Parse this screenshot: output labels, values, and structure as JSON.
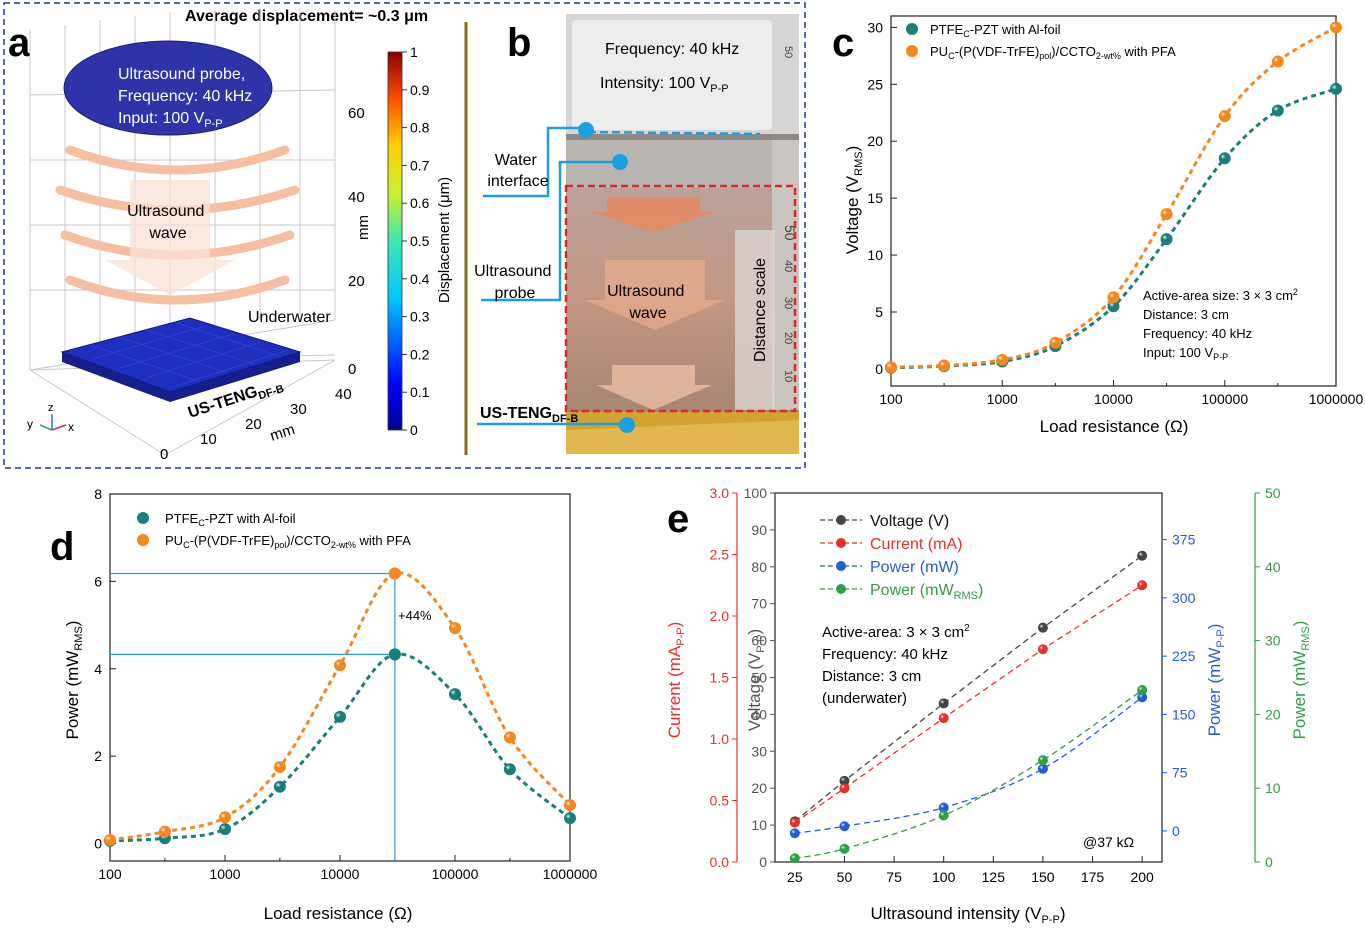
{
  "panel_a": {
    "letter": "a",
    "header": "Average displacement= ~0.3 μm",
    "probe_lines": [
      "Ultrasound probe,",
      "Frequency: 40 kHz",
      "Input: 100 V"
    ],
    "probe_input_sub": "P-P",
    "wave_lines": [
      "Ultrasound",
      "wave"
    ],
    "underwater": "Underwater",
    "device_label": "US-TENG",
    "device_sub": "DF-B",
    "z_ticks": [
      "60",
      "40",
      "20",
      "0"
    ],
    "z_unit": "mm",
    "y_ticks": [
      "40",
      "30",
      "20",
      "10",
      "0"
    ],
    "y_unit": "mm",
    "axis_letters": [
      "y",
      "z",
      "x"
    ],
    "colorbar_ticks": [
      "1",
      "0.9",
      "0.8",
      "0.7",
      "0.6",
      "0.5",
      "0.4",
      "0.3",
      "0.2",
      "0.1",
      "0"
    ],
    "colorbar_label": "Displacement (μm)"
  },
  "panel_b": {
    "letter": "b",
    "frequency": "Frequency: 40 kHz",
    "intensity": "Intensity: 100 V",
    "intensity_sub": "P-P",
    "water_lines": [
      "Water",
      "interface"
    ],
    "probe_lines": [
      "Ultrasound",
      "probe"
    ],
    "wave_lines": [
      "Ultrasound",
      "wave"
    ],
    "distance_scale": "Distance scale",
    "device_label": "US-TENG",
    "device_sub": "DF-B",
    "ruler_marks": [
      "50",
      "50",
      "40",
      "30",
      "20",
      "10"
    ]
  },
  "chart_data": [
    {
      "panel": "c",
      "type": "scatter",
      "xscale": "log",
      "xlabel": "Load resistance (Ω)",
      "ylabel": "Voltage (V",
      "ylabel_sub": "RMS",
      "xlim": [
        100,
        1000000
      ],
      "ylim": [
        -1.5,
        31
      ],
      "xticks": [
        "100",
        "1000",
        "10000",
        "100000",
        "1000000"
      ],
      "yticks": [
        "0",
        "5",
        "10",
        "15",
        "20",
        "25",
        "30"
      ],
      "legend": [
        "PTFE",
        "-PZT with Al-foil",
        "PU",
        "-(P(VDF-TrFE)",
        ")/CCTO",
        " with PFA"
      ],
      "annotation": [
        "Active-area size: 3 × 3 cm",
        "Distance: 3 cm",
        "Frequency: 40 kHz",
        "Input: 100 V"
      ],
      "x": [
        100,
        300,
        1000,
        3000,
        10000,
        30000,
        100000,
        300000,
        1000000
      ],
      "series": [
        {
          "name": "PTFE_C-PZT with Al-foil",
          "color": "#1a7f7a",
          "values": [
            0.1,
            0.25,
            0.65,
            2.0,
            5.5,
            11.4,
            18.5,
            22.7,
            24.6
          ]
        },
        {
          "name": "PU_C-(P(VDF-TrFE)_pol)/CCTO_2-wt% with PFA",
          "color": "#f5871f",
          "values": [
            0.15,
            0.3,
            0.8,
            2.3,
            6.3,
            13.6,
            22.2,
            27.0,
            30.0
          ]
        }
      ]
    },
    {
      "panel": "d",
      "type": "scatter",
      "xscale": "log",
      "xlabel": "Load resistance (Ω)",
      "ylabel": "Power (mW",
      "ylabel_sub": "RMS",
      "xlim": [
        100,
        1000000
      ],
      "ylim": [
        -0.4,
        8
      ],
      "xticks": [
        "100",
        "1000",
        "10000",
        "100000",
        "1000000"
      ],
      "yticks": [
        "0",
        "2",
        "4",
        "6",
        "8"
      ],
      "legend": [
        "PTFE",
        "-PZT with Al-foil",
        "PU",
        "-(P(VDF-TrFE)",
        ")/CCTO",
        " with PFA"
      ],
      "annotation": "+44%",
      "x": [
        100,
        300,
        1000,
        3000,
        10000,
        30000,
        100000,
        300000,
        1000000
      ],
      "series": [
        {
          "name": "PTFE_C-PZT with Al-foil",
          "color": "#1a7f7a",
          "values": [
            0.06,
            0.12,
            0.33,
            1.3,
            2.9,
            4.33,
            3.42,
            1.7,
            0.58
          ]
        },
        {
          "name": "PU_C-(P(VDF-TrFE)_pol)/CCTO_2-wt% with PFA",
          "color": "#f5871f",
          "values": [
            0.08,
            0.27,
            0.6,
            1.75,
            4.08,
            6.18,
            4.93,
            2.43,
            0.88
          ]
        }
      ]
    },
    {
      "panel": "e",
      "type": "line",
      "xlabel": "Ultrasound intensity (V",
      "xlabel_sub": "P-P",
      "x": [
        25,
        50,
        100,
        150,
        200
      ],
      "xlim": [
        15,
        210
      ],
      "xticks": [
        "25",
        "50",
        "75",
        "100",
        "125",
        "150",
        "175",
        "200"
      ],
      "annotation": [
        "Active-area: 3 × 3 cm",
        "Frequency: 40 kHz",
        "Distance: 3 cm",
        "(underwater)"
      ],
      "note": "@37 kΩ",
      "axes": {
        "voltage": {
          "label": "Voltage (V",
          "sub": "P-P",
          "lim": [
            0,
            100
          ],
          "ticks": [
            "0",
            "10",
            "20",
            "30",
            "40",
            "50",
            "60",
            "70",
            "80",
            "90",
            "100"
          ],
          "color": "#555555"
        },
        "current": {
          "label": "Current (mA",
          "sub": "P-P",
          "lim": [
            0,
            3.0
          ],
          "ticks": [
            "0.0",
            "0.5",
            "1.0",
            "1.5",
            "2.0",
            "2.5",
            "3.0"
          ],
          "color": "#e8302a"
        },
        "power": {
          "label": "Power (mW",
          "sub": "P-P",
          "lim": [
            -40,
            435
          ],
          "ticks": [
            "0",
            "75",
            "150",
            "225",
            "300",
            "375"
          ],
          "color": "#1f5fd6"
        },
        "power_rms": {
          "label": "Power (mW",
          "sub": "RMS",
          "lim": [
            0,
            50
          ],
          "ticks": [
            "0",
            "10",
            "20",
            "30",
            "40",
            "50"
          ],
          "color": "#2ea043"
        }
      },
      "series": [
        {
          "name": "Voltage (V)",
          "axis": "voltage",
          "color": "#444444",
          "values": [
            11,
            22,
            43,
            63.5,
            83
          ]
        },
        {
          "name": "Current (mA)",
          "axis": "current",
          "color": "#e8302a",
          "values": [
            0.32,
            0.6,
            1.17,
            1.73,
            2.25
          ]
        },
        {
          "name": "Power (mW)",
          "axis": "power",
          "color": "#1f5fd6",
          "values": [
            -3,
            6,
            30,
            80,
            172
          ]
        },
        {
          "name": "Power (mW",
          "name_sub": "RMS",
          "axis": "power_rms",
          "color": "#2ea043",
          "values": [
            0.5,
            1.8,
            6.3,
            13.8,
            23.3
          ]
        }
      ]
    }
  ],
  "letters": {
    "c": "c",
    "d": "d",
    "e": "e"
  },
  "sub_texts": {
    "c_sub": "C",
    "pol": "pol",
    "wt": "2-wt%",
    "area_sup": "2",
    "input_sub": "P-P"
  }
}
